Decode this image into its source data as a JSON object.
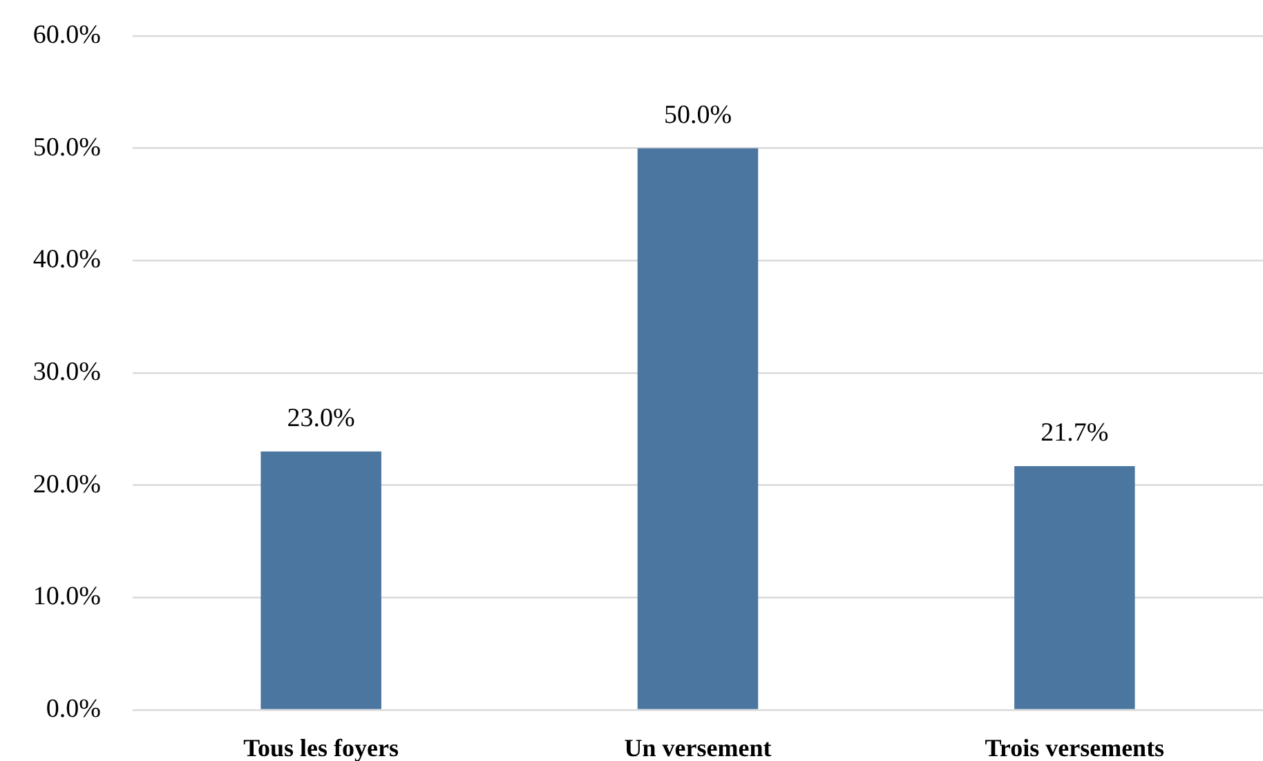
{
  "chart_data": {
    "type": "bar",
    "categories": [
      "Tous les foyers",
      "Un versement",
      "Trois versements"
    ],
    "values": [
      23.0,
      50.0,
      21.7
    ],
    "color": "#4a76a0",
    "value_labels": [
      "23.0%",
      "50.0%",
      "21.7%"
    ],
    "ylim": [
      0,
      60
    ],
    "yticks": [
      {
        "value": 0,
        "label": "0.0%"
      },
      {
        "value": 10,
        "label": "10.0%"
      },
      {
        "value": 20,
        "label": "20.0%"
      },
      {
        "value": 30,
        "label": "30.0%"
      },
      {
        "value": 40,
        "label": "40.0%"
      },
      {
        "value": 50,
        "label": "50.0%"
      },
      {
        "value": 60,
        "label": "60.0%"
      }
    ],
    "grid": "y"
  }
}
